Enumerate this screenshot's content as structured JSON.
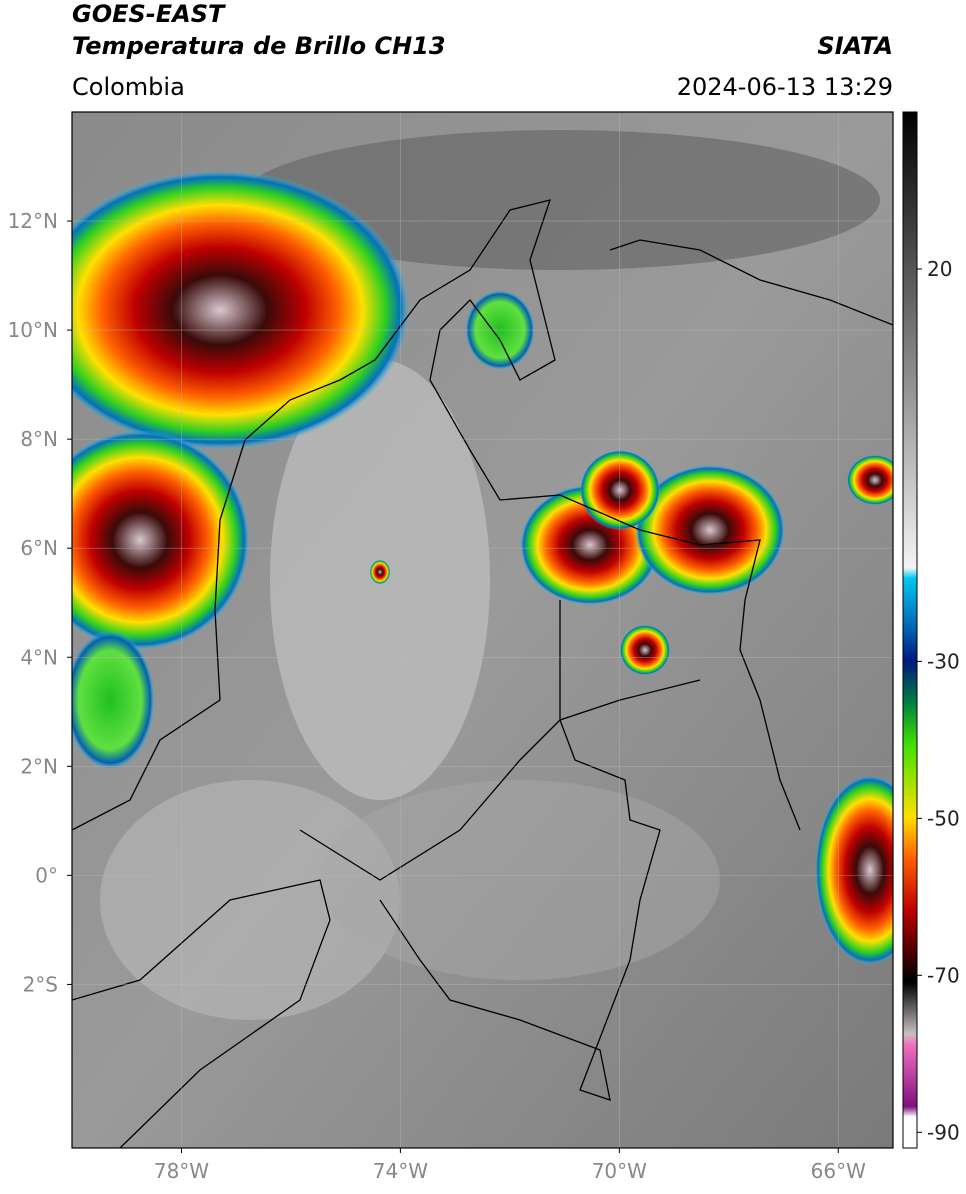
{
  "header": {
    "title": "GOES-EAST",
    "subtitle": "Temperatura de Brillo CH13",
    "region": "Colombia",
    "source": "SIATA",
    "datetime": "2024-06-13 13:29"
  },
  "map": {
    "xlim": [
      -80,
      -65
    ],
    "ylim": [
      -5,
      14
    ],
    "xticks": [
      {
        "value": -78,
        "label": "78°W"
      },
      {
        "value": -74,
        "label": "74°W"
      },
      {
        "value": -70,
        "label": "70°W"
      },
      {
        "value": -66,
        "label": "66°W"
      }
    ],
    "yticks": [
      {
        "value": 12,
        "label": "12°N"
      },
      {
        "value": 10,
        "label": "10°N"
      },
      {
        "value": 8,
        "label": "8°N"
      },
      {
        "value": 6,
        "label": "6°N"
      },
      {
        "value": 4,
        "label": "4°N"
      },
      {
        "value": 2,
        "label": "2°N"
      },
      {
        "value": 0,
        "label": "0°"
      },
      {
        "value": -2,
        "label": "2°S"
      }
    ],
    "grid": true
  },
  "colorbar": {
    "clim": [
      -92,
      40
    ],
    "ticks": [
      20,
      -30,
      -50,
      -70,
      -90
    ]
  }
}
